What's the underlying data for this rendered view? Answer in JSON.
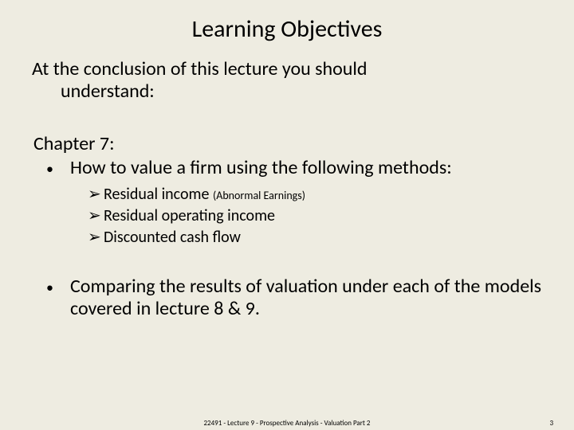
{
  "background_color": "#eeece1",
  "text_color": "#000000",
  "title": "Learning Objectives",
  "title_fontsize": 30,
  "intro": {
    "line1": "At the conclusion of this lecture you should",
    "line2": "understand:",
    "fontsize": 24
  },
  "chapter_label": "Chapter 7:",
  "bullets": [
    {
      "text": "How to value a firm using the following methods:",
      "sub": [
        {
          "text": "Residual income ",
          "note": "(Abnormal Earnings)"
        },
        {
          "text": "Residual operating income",
          "note": ""
        },
        {
          "text": "Discounted cash flow",
          "note": ""
        }
      ]
    },
    {
      "text": "Comparing the results of valuation under each of the models covered in lecture 8 & 9.",
      "sub": []
    }
  ],
  "bullet_marker": "•",
  "sub_marker": "➢",
  "body_fontsize": 24,
  "sub_fontsize": 20,
  "note_fontsize": 14,
  "footer": {
    "center": "22491 - Lecture 9 - Prospective Analysis - Valuation Part 2",
    "page": "3",
    "fontsize": 9
  }
}
